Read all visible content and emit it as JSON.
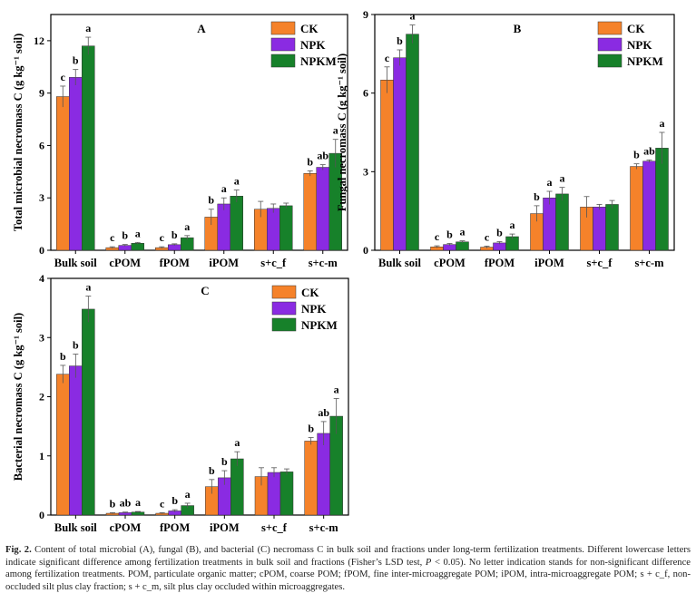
{
  "colors": {
    "CK": "#F5822A",
    "NPK": "#8A2BE2",
    "NPKM": "#17812A",
    "axis": "#000000"
  },
  "legend": [
    "CK",
    "NPK",
    "NPKM"
  ],
  "chart_data": [
    {
      "type": "bar",
      "panel": "A",
      "ylabel": "Total microbial necromass C (g kg⁻¹ soil)",
      "ylim": [
        0,
        13.5
      ],
      "yticks": [
        "0",
        "3",
        "6",
        "9",
        "12"
      ],
      "yticks_values": [
        0,
        3,
        6,
        9,
        12
      ],
      "categories": [
        "Bulk soil",
        "cPOM",
        "fPOM",
        "iPOM",
        "s+c_f",
        "s+c-m"
      ],
      "series": [
        {
          "name": "CK",
          "values": [
            8.8,
            0.15,
            0.15,
            1.9,
            2.35,
            4.4
          ],
          "errors": [
            0.6,
            0.05,
            0.05,
            0.45,
            0.45,
            0.15
          ],
          "letters": [
            "c",
            "c",
            "c",
            "b",
            "",
            "b"
          ]
        },
        {
          "name": "NPK",
          "values": [
            9.9,
            0.28,
            0.32,
            2.65,
            2.4,
            4.75
          ],
          "errors": [
            0.45,
            0.05,
            0.05,
            0.35,
            0.25,
            0.15
          ],
          "letters": [
            "b",
            "b",
            "b",
            "a",
            "",
            "ab"
          ]
        },
        {
          "name": "NPKM",
          "values": [
            11.7,
            0.4,
            0.72,
            3.1,
            2.55,
            5.55
          ],
          "errors": [
            0.5,
            0.05,
            0.12,
            0.35,
            0.15,
            0.8
          ],
          "letters": [
            "a",
            "a",
            "a",
            "a",
            "",
            "a"
          ]
        }
      ]
    },
    {
      "type": "bar",
      "panel": "B",
      "ylabel": "Fungal necromass C (g kg⁻¹ soil)",
      "ylim": [
        0,
        9
      ],
      "yticks": [
        "0",
        "3",
        "6",
        "9"
      ],
      "yticks_values": [
        0,
        3,
        6,
        9
      ],
      "categories": [
        "Bulk soil",
        "cPOM",
        "fPOM",
        "iPOM",
        "s+c_f",
        "s+c-m"
      ],
      "series": [
        {
          "name": "CK",
          "values": [
            6.5,
            0.13,
            0.12,
            1.4,
            1.65,
            3.2
          ],
          "errors": [
            0.5,
            0.04,
            0.04,
            0.3,
            0.4,
            0.1
          ],
          "letters": [
            "c",
            "c",
            "c",
            "b",
            "",
            "b"
          ]
        },
        {
          "name": "NPK",
          "values": [
            7.35,
            0.22,
            0.28,
            2.0,
            1.65,
            3.4
          ],
          "errors": [
            0.3,
            0.04,
            0.05,
            0.25,
            0.1,
            0.05
          ],
          "letters": [
            "b",
            "b",
            "b",
            "a",
            "",
            "ab"
          ]
        },
        {
          "name": "NPKM",
          "values": [
            8.25,
            0.32,
            0.52,
            2.15,
            1.75,
            3.9
          ],
          "errors": [
            0.35,
            0.04,
            0.1,
            0.25,
            0.15,
            0.6
          ],
          "letters": [
            "a",
            "a",
            "a",
            "a",
            "",
            "a"
          ]
        }
      ]
    },
    {
      "type": "bar",
      "panel": "C",
      "ylabel": "Bacterial necromass C (g kg⁻¹ soil)",
      "ylim": [
        0,
        4
      ],
      "yticks": [
        "0",
        "1",
        "2",
        "3",
        "4"
      ],
      "yticks_values": [
        0,
        1,
        2,
        3,
        4
      ],
      "categories": [
        "Bulk soil",
        "cPOM",
        "fPOM",
        "iPOM",
        "s+c_f",
        "s+c-m"
      ],
      "series": [
        {
          "name": "CK",
          "values": [
            2.38,
            0.03,
            0.03,
            0.48,
            0.65,
            1.25
          ],
          "errors": [
            0.15,
            0.01,
            0.01,
            0.12,
            0.15,
            0.06
          ],
          "letters": [
            "b",
            "b",
            "c",
            "b",
            "",
            "b"
          ]
        },
        {
          "name": "NPK",
          "values": [
            2.52,
            0.04,
            0.07,
            0.63,
            0.72,
            1.38
          ],
          "errors": [
            0.2,
            0.01,
            0.02,
            0.12,
            0.08,
            0.2
          ],
          "letters": [
            "b",
            "ab",
            "b",
            "b",
            "",
            "ab"
          ]
        },
        {
          "name": "NPKM",
          "values": [
            3.48,
            0.05,
            0.16,
            0.95,
            0.73,
            1.67
          ],
          "errors": [
            0.22,
            0.01,
            0.04,
            0.12,
            0.05,
            0.3
          ],
          "letters": [
            "a",
            "a",
            "a",
            "a",
            "",
            "a"
          ]
        }
      ]
    }
  ],
  "caption": {
    "label": "Fig. 2.",
    "text_before_p": "Content of total microbial (A), fungal (B), and bacterial (C) necromass C in bulk soil and fractions under long-term fertilization treatments. Different lowercase letters indicate significant difference among fertilization treatments in bulk soil and fractions (Fisher’s LSD test, ",
    "p_symbol": "P",
    "text_after_p": " < 0.05). No letter indication stands for non-significant difference among fertilization treatments. POM, particulate organic matter; cPOM, coarse POM; fPOM, fine inter-microaggregate POM; iPOM, intra-microaggregate POM; s + c_f, non-occluded silt plus clay fraction; s + c_m, silt plus clay occluded within microaggregates."
  }
}
